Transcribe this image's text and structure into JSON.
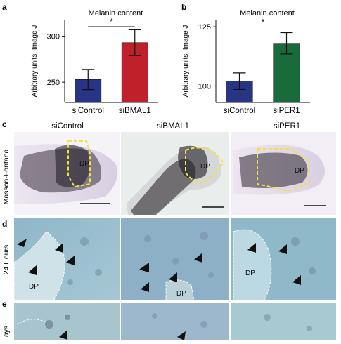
{
  "panels": {
    "a": "a",
    "b": "b",
    "c": "c",
    "d": "d",
    "e": "e"
  },
  "row_labels": {
    "c": "Masson-Fontana",
    "d": "24 Hours",
    "e": "ays"
  },
  "columns": [
    "siControl",
    "siBMAL1",
    "siPER1"
  ],
  "dp_label": "DP",
  "colors": {
    "control_bar": "#283584",
    "bmal1_bar": "#c0202a",
    "per1_bar": "#1a6b3c",
    "dashed_outline": "#f2e23c",
    "arrowheads": "#111111"
  },
  "chart_data": [
    {
      "type": "bar",
      "title": "Melanin content",
      "ylabel": "Arbitrary units, Image J",
      "categories": [
        "siControl",
        "siBMAL1"
      ],
      "values": [
        253,
        293
      ],
      "errors": [
        11,
        14
      ],
      "ylim": [
        228,
        318
      ],
      "yticks": [
        250,
        300
      ],
      "significance": "*"
    },
    {
      "type": "bar",
      "title": "Melanin content",
      "ylabel": "Arbitrary units, Image J",
      "categories": [
        "siControl",
        "siPER1"
      ],
      "values": [
        102,
        118
      ],
      "errors": [
        3.5,
        4.5
      ],
      "ylim": [
        93,
        128
      ],
      "yticks": [
        100,
        125
      ],
      "significance": "*"
    }
  ]
}
